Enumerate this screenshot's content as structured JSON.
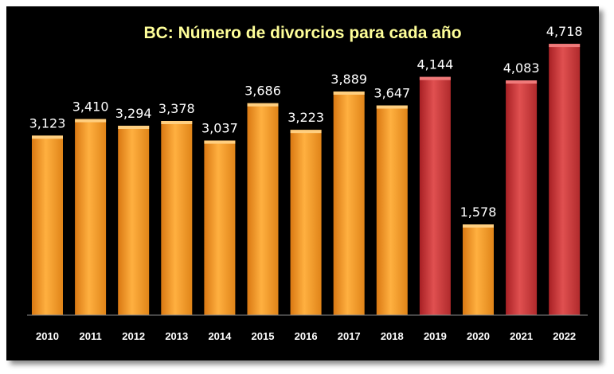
{
  "chart_data": {
    "type": "bar",
    "title": "BC: Número de divorcios para cada año",
    "xlabel": "",
    "ylabel": "",
    "categories": [
      "2010",
      "2011",
      "2012",
      "2013",
      "2014",
      "2015",
      "2016",
      "2017",
      "2018",
      "2019",
      "2020",
      "2021",
      "2022"
    ],
    "values": [
      3123,
      3410,
      3294,
      3378,
      3037,
      3686,
      3223,
      3889,
      3647,
      4144,
      1578,
      4083,
      4718
    ],
    "value_labels": [
      "3,123",
      "3,410",
      "3,294",
      "3,378",
      "3,037",
      "3,686",
      "3,223",
      "3,889",
      "3,647",
      "4,144",
      "1,578",
      "4,083",
      "4,718"
    ],
    "bar_colors": [
      "#f39a2e",
      "#f39a2e",
      "#f39a2e",
      "#f39a2e",
      "#f39a2e",
      "#f39a2e",
      "#f39a2e",
      "#f39a2e",
      "#f39a2e",
      "#c9383a",
      "#f39a2e",
      "#c9383a",
      "#c9383a"
    ],
    "ylim": [
      0,
      4900
    ],
    "grid": false,
    "legend": "none"
  },
  "colors": {
    "background": "#000000",
    "title": "#ffff99",
    "text": "#ffffff",
    "orange_bar": "#f39a2e",
    "red_bar": "#c9383a"
  }
}
